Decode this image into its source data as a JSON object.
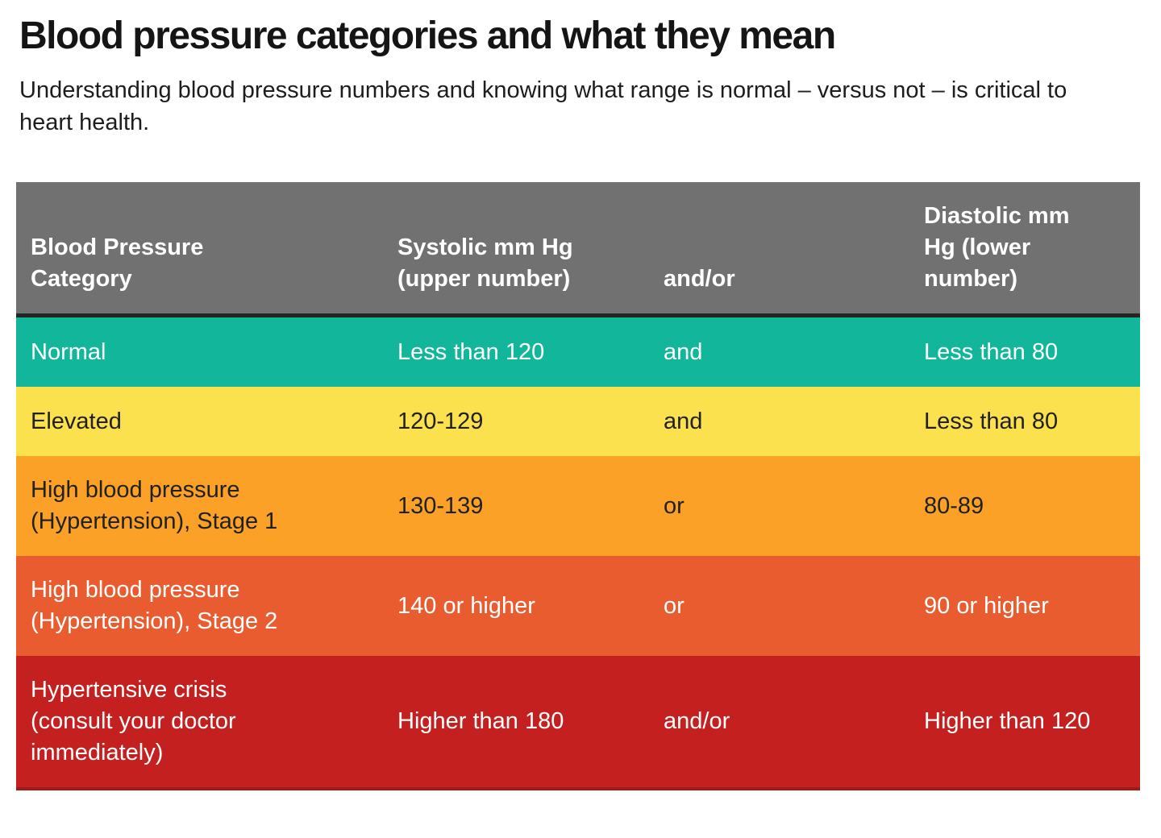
{
  "page": {
    "title": "Blood pressure categories and what they mean",
    "subtitle": "Understanding blood pressure numbers and knowing what range is normal – versus not – is critical to heart health."
  },
  "table": {
    "header": {
      "bg": "#717171",
      "text_color": "#FFFFFF",
      "rule_color": "#242424",
      "columns": [
        "Blood Pressure Category",
        "Systolic mm Hg (upper number)",
        "and/or",
        "Diastolic mm Hg (lower number)"
      ]
    },
    "rows": [
      {
        "category": "Normal",
        "systolic": "Less than 120",
        "connector": "and",
        "diastolic": "Less than 80",
        "color": "#12B69B",
        "text_color": "#FFFFFF"
      },
      {
        "category": "Elevated",
        "systolic": "120-129",
        "connector": "and",
        "diastolic": "Less than 80",
        "color": "#FCE14E",
        "text_color": "#212121"
      },
      {
        "category": "High blood pressure (Hypertension), Stage 1",
        "systolic": "130-139",
        "connector": "or",
        "diastolic": "80-89",
        "color": "#FBA128",
        "text_color": "#212121"
      },
      {
        "category": "High blood pressure (Hypertension), Stage 2",
        "systolic": "140 or higher",
        "connector": "or",
        "diastolic": "90 or higher",
        "color": "#E85C30",
        "text_color": "#FFFFFF"
      },
      {
        "category": "Hypertensive crisis (consult your doctor immediately)",
        "systolic": "Higher than 180",
        "connector": "and/or",
        "diastolic": "Higher than 120",
        "color": "#C42020",
        "text_color": "#FFFFFF"
      }
    ]
  }
}
